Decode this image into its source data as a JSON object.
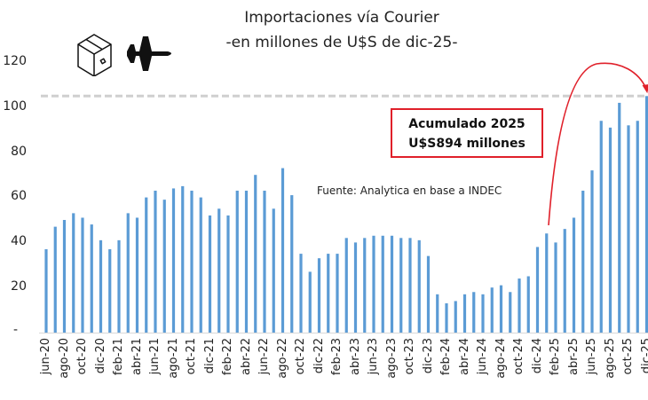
{
  "header": {
    "title_line1": "Importaciones vía Courier",
    "title_line2": "-en millones de U$S de dic-25-",
    "icons": [
      "package-box-icon",
      "airplane-icon"
    ]
  },
  "annotation": {
    "line1": "Acumulado 2025",
    "line2": "U$S894 millones",
    "border_color": "#e0202a"
  },
  "source_note": "Fuente: Analytica en base a INDEC",
  "colors": {
    "bar": "#5b9bd5",
    "reference_line": "#cfcfcf",
    "arrow": "#e0202a"
  },
  "y_axis": {
    "ticks": [
      "120",
      "100",
      "80",
      "60",
      "40",
      "20",
      "-"
    ]
  },
  "chart_data": {
    "type": "bar",
    "title": "Importaciones vía Courier -en millones de U$S de dic-25-",
    "xlabel": "",
    "ylabel": "millones de U$S",
    "ylim": [
      0,
      120
    ],
    "yticks": [
      0,
      20,
      40,
      60,
      80,
      100,
      120
    ],
    "grid": false,
    "legend": null,
    "reference_line": {
      "y": 105,
      "style": "dashed",
      "color": "#cfcfcf"
    },
    "annotations": [
      "Acumulado 2025 U$S894 millones",
      "Fuente: Analytica en base a INDEC",
      "Red arrow from ene-25 bar to dic-25 bar"
    ],
    "tick_labels": [
      "jun-20",
      "ago-20",
      "oct-20",
      "dic-20",
      "feb-21",
      "abr-21",
      "jun-21",
      "ago-21",
      "oct-21",
      "dic-21",
      "feb-22",
      "abr-22",
      "jun-22",
      "ago-22",
      "oct-22",
      "dic-22",
      "feb-23",
      "abr-23",
      "jun-23",
      "ago-23",
      "oct-23",
      "dic-23",
      "feb-24",
      "abr-24",
      "jun-24",
      "ago-24",
      "oct-24",
      "dic-24",
      "feb-25",
      "abr-25",
      "jun-25",
      "ago-25",
      "oct-25",
      "dic-25"
    ],
    "categories": [
      "jun-20",
      "jul-20",
      "ago-20",
      "sep-20",
      "oct-20",
      "nov-20",
      "dic-20",
      "ene-21",
      "feb-21",
      "mar-21",
      "abr-21",
      "may-21",
      "jun-21",
      "jul-21",
      "ago-21",
      "sep-21",
      "oct-21",
      "nov-21",
      "dic-21",
      "ene-22",
      "feb-22",
      "mar-22",
      "abr-22",
      "may-22",
      "jun-22",
      "jul-22",
      "ago-22",
      "sep-22",
      "oct-22",
      "nov-22",
      "dic-22",
      "ene-23",
      "feb-23",
      "mar-23",
      "abr-23",
      "may-23",
      "jun-23",
      "jul-23",
      "ago-23",
      "sep-23",
      "oct-23",
      "nov-23",
      "dic-23",
      "ene-24",
      "feb-24",
      "mar-24",
      "abr-24",
      "may-24",
      "jun-24",
      "jul-24",
      "ago-24",
      "sep-24",
      "oct-24",
      "nov-24",
      "dic-24",
      "ene-25",
      "feb-25",
      "mar-25",
      "abr-25",
      "may-25",
      "jun-25",
      "jul-25",
      "ago-25",
      "sep-25",
      "oct-25",
      "nov-25",
      "dic-25"
    ],
    "values": [
      37,
      47,
      50,
      53,
      51,
      48,
      41,
      37,
      41,
      53,
      51,
      60,
      63,
      59,
      64,
      65,
      63,
      60,
      52,
      55,
      52,
      63,
      63,
      70,
      63,
      55,
      73,
      61,
      35,
      27,
      33,
      35,
      35,
      42,
      40,
      42,
      43,
      43,
      43,
      42,
      42,
      41,
      34,
      17,
      13,
      14,
      17,
      18,
      17,
      20,
      21,
      18,
      24,
      25,
      38,
      44,
      40,
      46,
      51,
      63,
      72,
      94,
      91,
      102,
      92,
      94,
      105
    ]
  }
}
